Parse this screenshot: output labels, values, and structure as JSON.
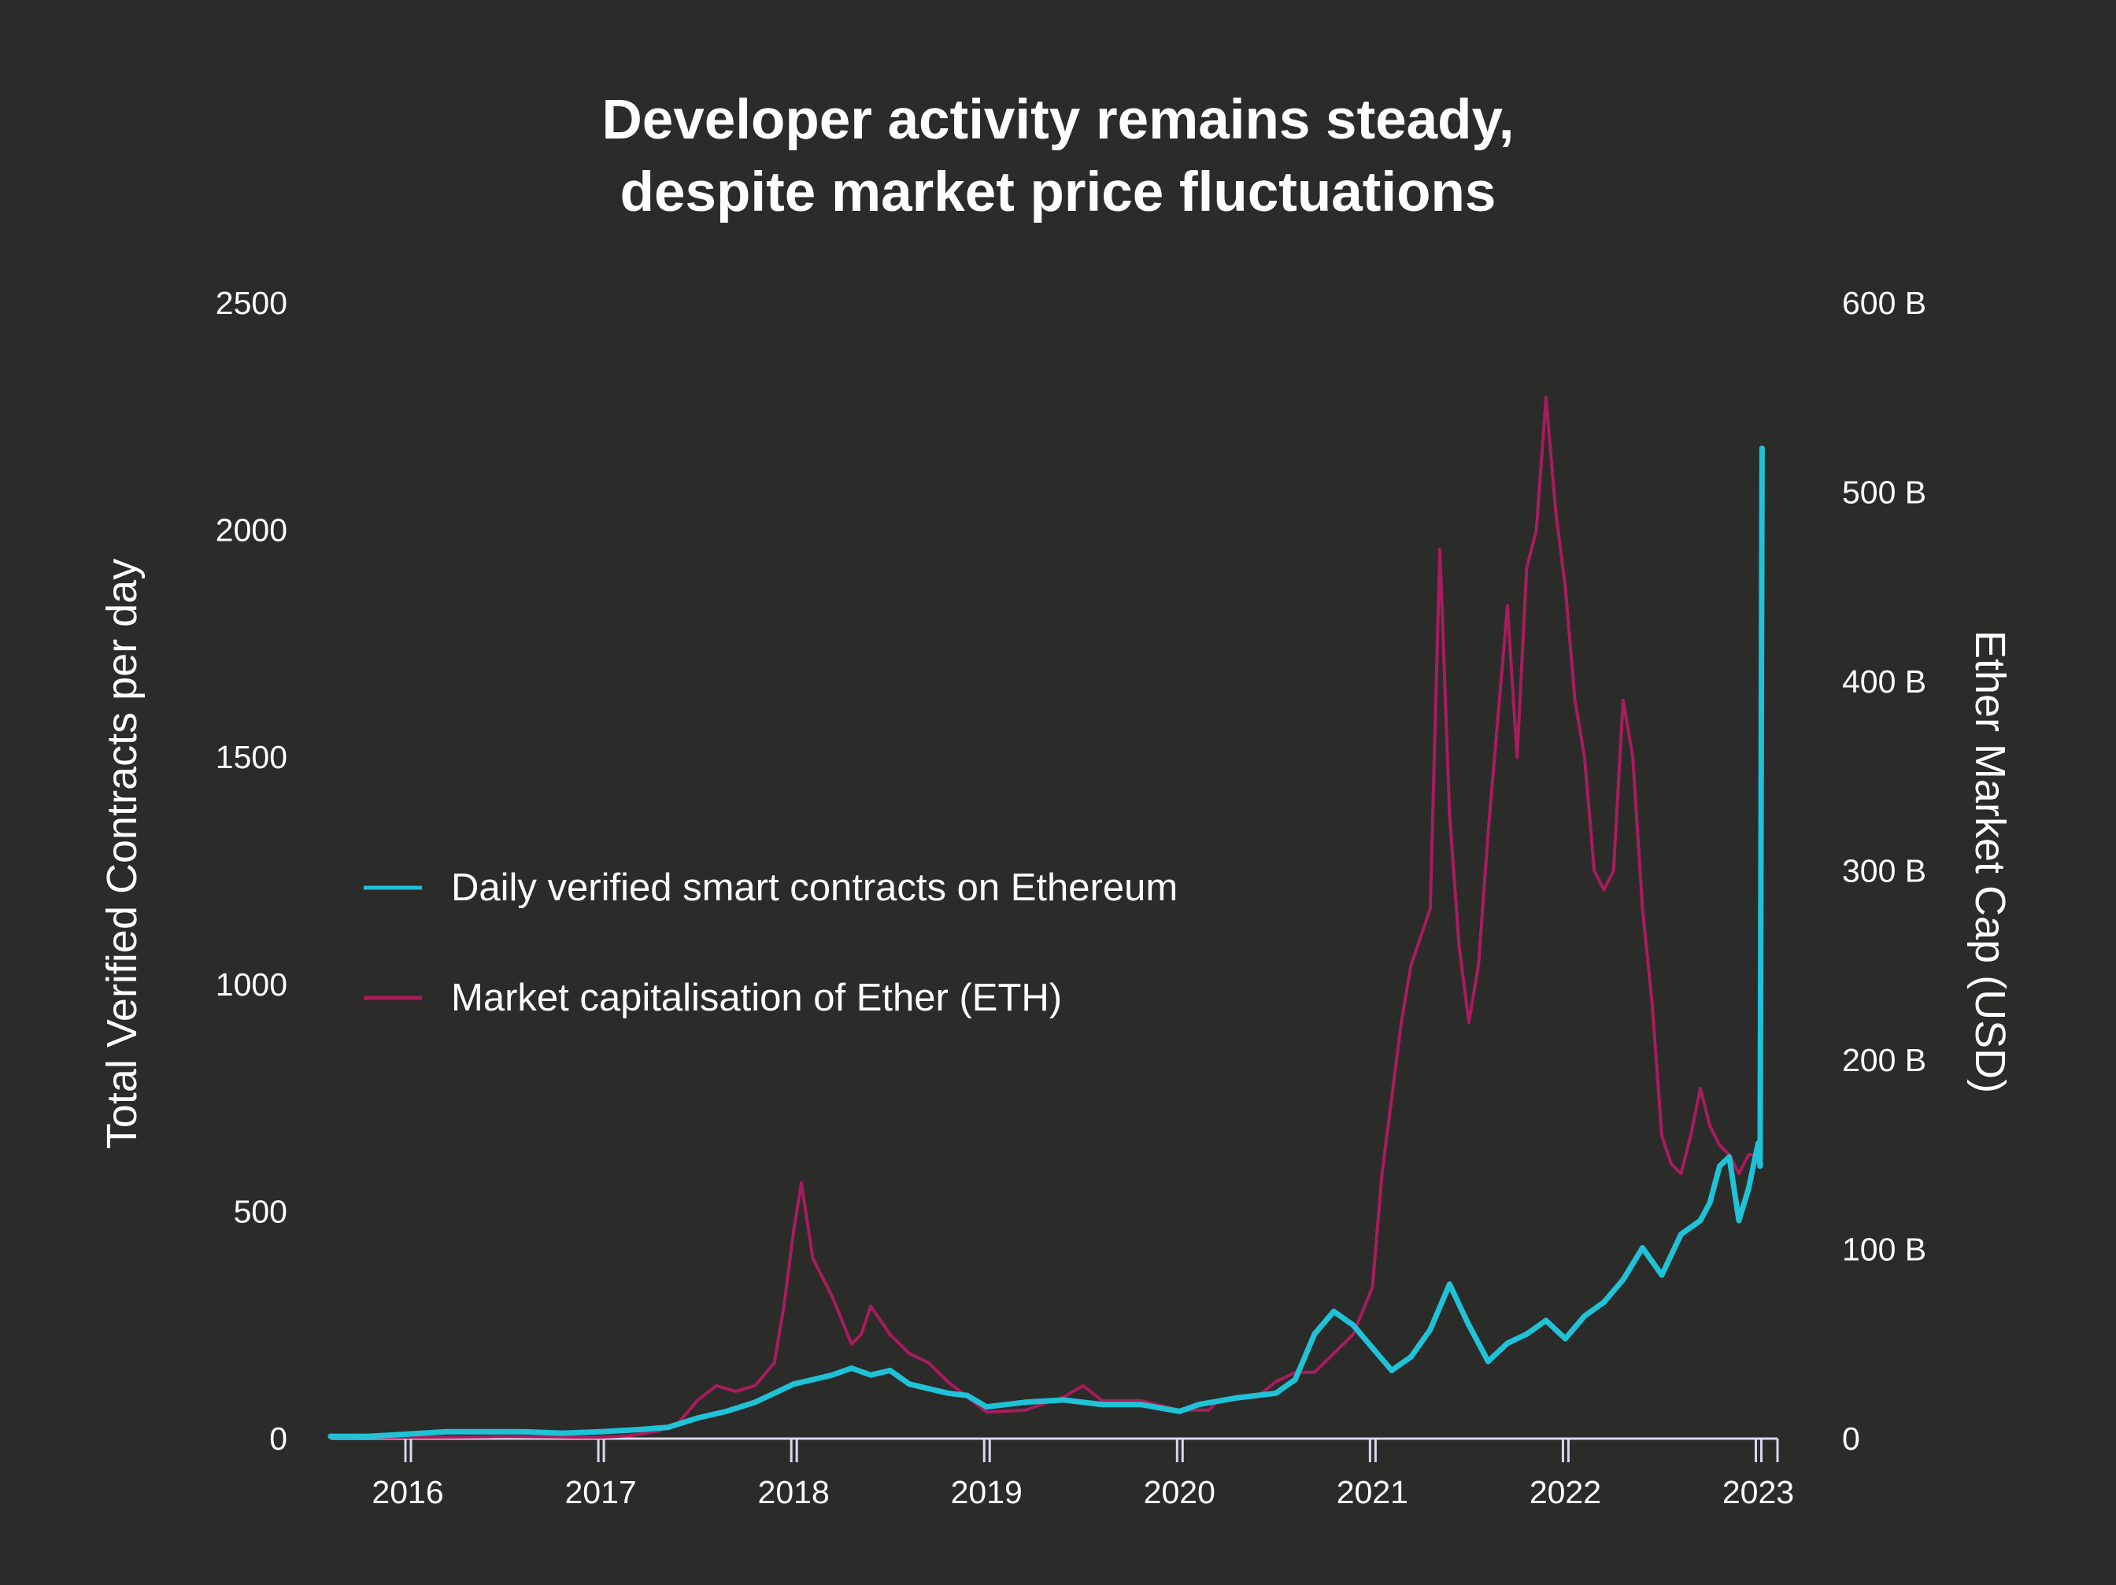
{
  "chart_data": {
    "type": "line",
    "title_lines": [
      "Developer activity remains steady,",
      "despite market price fluctuations"
    ],
    "left_axis": {
      "label": "Total Verified Contracts per day",
      "range": [
        0,
        2500
      ],
      "ticks": [
        0,
        500,
        1000,
        1500,
        2000,
        2500
      ],
      "tick_labels": [
        "0",
        "500",
        "1000",
        "1500",
        "2000",
        "2500"
      ]
    },
    "right_axis": {
      "label": "Ether Market Cap (USD)",
      "range": [
        0,
        600
      ],
      "unit": "billion USD",
      "ticks": [
        0,
        100,
        200,
        300,
        400,
        500,
        600
      ],
      "tick_labels": [
        "0",
        "100 B",
        "200 B",
        "300 B",
        "400 B",
        "500 B",
        "600 B"
      ]
    },
    "x_axis": {
      "range": [
        2015.6,
        2023.1
      ],
      "ticks": [
        2016,
        2017,
        2018,
        2019,
        2020,
        2021,
        2022,
        2023
      ],
      "tick_labels": [
        "2016",
        "2017",
        "2018",
        "2019",
        "2020",
        "2021",
        "2022",
        "2023"
      ]
    },
    "grid": false,
    "legend_position": "middle-left",
    "series": [
      {
        "name": "Daily verified smart contracts on Ethereum",
        "axis": "left",
        "color": "#1fc2d6",
        "x": [
          2015.6,
          2015.8,
          2016.0,
          2016.2,
          2016.4,
          2016.6,
          2016.8,
          2017.0,
          2017.2,
          2017.35,
          2017.5,
          2017.65,
          2017.8,
          2017.9,
          2018.0,
          2018.1,
          2018.2,
          2018.3,
          2018.4,
          2018.5,
          2018.6,
          2018.7,
          2018.8,
          2018.9,
          2019.0,
          2019.2,
          2019.4,
          2019.6,
          2019.8,
          2020.0,
          2020.1,
          2020.3,
          2020.5,
          2020.6,
          2020.7,
          2020.8,
          2020.9,
          2021.0,
          2021.1,
          2021.2,
          2021.3,
          2021.4,
          2021.5,
          2021.6,
          2021.7,
          2021.8,
          2021.9,
          2022.0,
          2022.1,
          2022.2,
          2022.3,
          2022.4,
          2022.5,
          2022.6,
          2022.7,
          2022.75,
          2022.8,
          2022.85,
          2022.9,
          2022.95,
          2023.0,
          2023.01,
          2023.02
        ],
        "values": [
          5,
          5,
          10,
          15,
          15,
          15,
          12,
          15,
          20,
          25,
          45,
          60,
          80,
          100,
          120,
          130,
          140,
          155,
          140,
          150,
          120,
          110,
          100,
          95,
          70,
          80,
          85,
          75,
          75,
          60,
          75,
          90,
          100,
          130,
          230,
          280,
          250,
          200,
          150,
          180,
          240,
          340,
          250,
          170,
          210,
          230,
          260,
          220,
          270,
          300,
          350,
          420,
          360,
          450,
          480,
          520,
          600,
          620,
          480,
          550,
          650,
          600,
          2180
        ]
      },
      {
        "name": "Market capitalisation of Ether (ETH)",
        "axis": "right",
        "color": "#a81c5d",
        "x": [
          2015.6,
          2015.8,
          2016.0,
          2016.2,
          2016.4,
          2016.5,
          2016.7,
          2016.9,
          2017.0,
          2017.15,
          2017.3,
          2017.4,
          2017.5,
          2017.6,
          2017.7,
          2017.8,
          2017.9,
          2017.95,
          2018.0,
          2018.04,
          2018.1,
          2018.2,
          2018.3,
          2018.35,
          2018.4,
          2018.5,
          2018.6,
          2018.7,
          2018.8,
          2018.9,
          2019.0,
          2019.2,
          2019.4,
          2019.5,
          2019.6,
          2019.8,
          2020.0,
          2020.15,
          2020.2,
          2020.4,
          2020.5,
          2020.6,
          2020.7,
          2020.8,
          2020.9,
          2021.0,
          2021.05,
          2021.1,
          2021.15,
          2021.2,
          2021.3,
          2021.35,
          2021.4,
          2021.45,
          2021.5,
          2021.55,
          2021.6,
          2021.7,
          2021.75,
          2021.8,
          2021.85,
          2021.9,
          2021.95,
          2022.0,
          2022.05,
          2022.1,
          2022.15,
          2022.2,
          2022.25,
          2022.3,
          2022.35,
          2022.4,
          2022.45,
          2022.5,
          2022.55,
          2022.6,
          2022.65,
          2022.7,
          2022.75,
          2022.8,
          2022.85,
          2022.9,
          2022.95,
          2023.0,
          2023.02
        ],
        "values": [
          0.5,
          0.6,
          0.7,
          0.8,
          1,
          1.2,
          1,
          0.8,
          0.8,
          1.5,
          4,
          8,
          20,
          28,
          25,
          28,
          40,
          70,
          110,
          135,
          95,
          75,
          50,
          55,
          70,
          55,
          45,
          40,
          30,
          22,
          14,
          15,
          22,
          28,
          20,
          20,
          15,
          15,
          20,
          22,
          30,
          35,
          35,
          45,
          55,
          80,
          140,
          180,
          220,
          250,
          280,
          470,
          330,
          260,
          220,
          250,
          320,
          440,
          360,
          460,
          480,
          550,
          490,
          450,
          390,
          360,
          300,
          290,
          300,
          390,
          360,
          280,
          230,
          160,
          145,
          140,
          160,
          185,
          165,
          155,
          150,
          140,
          150,
          150,
          145
        ]
      }
    ]
  }
}
